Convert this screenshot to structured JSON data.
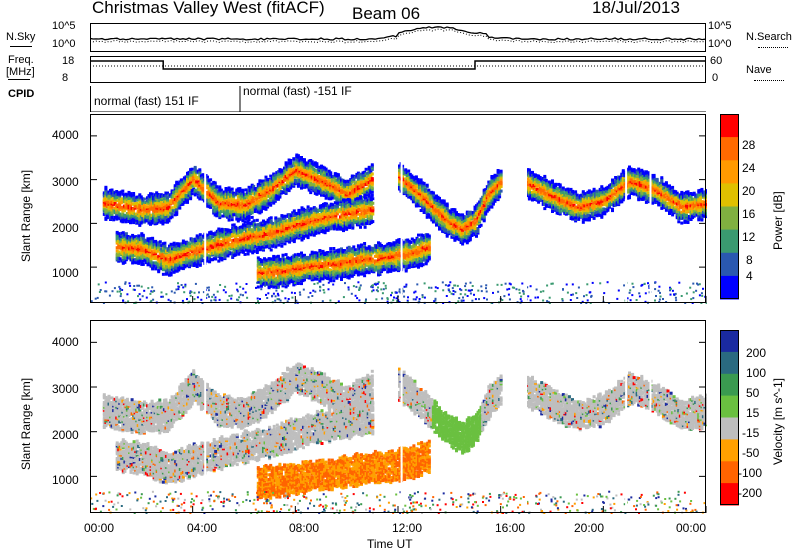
{
  "header": {
    "radar": "Christmas Valley West (fitACF)",
    "beam": "Beam 06",
    "date": "18/Jul/2013"
  },
  "top_panels": {
    "nsky_label": "N.Sky",
    "nsky_ticks": [
      "10^5",
      "10^0"
    ],
    "nsearch_label": "N.Search",
    "nsearch_ticks": [
      "10^5",
      "10^0"
    ],
    "freq_label_line1": "Freq.",
    "freq_label_line2": "[MHz]",
    "freq_ticks": [
      "18",
      "8"
    ],
    "nave_label": "Nave",
    "nave_ticks": [
      "60",
      "0"
    ],
    "cpid_label": "CPID",
    "cpid_segments": [
      "normal (fast) 151 IF",
      "normal (fast) -151 IF"
    ]
  },
  "power_panel": {
    "ylabel": "Slant Range [km]",
    "yticks": [
      "4000",
      "3000",
      "2000",
      "1000"
    ],
    "colorbar_label": "Power [dB]",
    "colorbar_ticks": [
      "28",
      "24",
      "20",
      "16",
      "12",
      "8",
      "4"
    ],
    "colors": [
      "#ff0000",
      "#ff6a00",
      "#ff9a00",
      "#e0c000",
      "#80b040",
      "#3a9a70",
      "#2a58b0",
      "#0000ff"
    ]
  },
  "velocity_panel": {
    "ylabel": "Slant Range [km]",
    "yticks": [
      "4000",
      "3000",
      "2000",
      "1000"
    ],
    "colorbar_label": "Velocity [m s^-1]",
    "colorbar_ticks": [
      "200",
      "100",
      "50",
      "15",
      "-15",
      "-50",
      "-100",
      "-200"
    ],
    "colors": [
      "#1a2aa0",
      "#2a6a80",
      "#3a9a50",
      "#6ac040",
      "#bebebe",
      "#ffa000",
      "#ff6400",
      "#ff0000"
    ]
  },
  "xaxis": {
    "label": "Time UT",
    "ticks": [
      "00:00",
      "04:00",
      "08:00",
      "12:00",
      "16:00",
      "20:00",
      "00:00"
    ]
  },
  "chart_data": {
    "type": "heatmap",
    "x_range": [
      "00:00",
      "24:00"
    ],
    "y_range_km": [
      180,
      4500
    ],
    "power_db_range": [
      0,
      30
    ],
    "velocity_range": [
      -200,
      200
    ],
    "echo_bands": [
      {
        "name": "upper",
        "x": [
          0.5,
          2,
          3,
          4,
          5,
          6,
          7,
          8,
          9,
          10,
          11
        ],
        "y": [
          2500,
          2350,
          2400,
          3050,
          2500,
          2450,
          2800,
          3250,
          3000,
          2700,
          3050
        ]
      },
      {
        "name": "middle",
        "x": [
          1,
          2,
          3,
          4,
          5,
          6,
          7,
          8,
          9,
          10,
          11
        ],
        "y": [
          1500,
          1450,
          1200,
          1400,
          1550,
          1700,
          1800,
          2000,
          2150,
          2250,
          2350
        ]
      },
      {
        "name": "lower",
        "x": [
          6.5,
          7.5,
          8.5,
          9.5,
          10.5,
          11.5,
          12.5,
          13.2
        ],
        "y": [
          900,
          950,
          1050,
          1100,
          1200,
          1250,
          1350,
          1500
        ]
      },
      {
        "name": "arc",
        "x": [
          12,
          12.5,
          13,
          13.5,
          14,
          14.5,
          15,
          15.5,
          16
        ],
        "y": [
          3100,
          2850,
          2600,
          2300,
          2050,
          1900,
          2100,
          2700,
          3000
        ]
      },
      {
        "name": "evening",
        "x": [
          17,
          18,
          19,
          20,
          21,
          22,
          23,
          24
        ],
        "y": [
          2950,
          2650,
          2400,
          2550,
          3000,
          2800,
          2400,
          2500
        ]
      }
    ]
  }
}
